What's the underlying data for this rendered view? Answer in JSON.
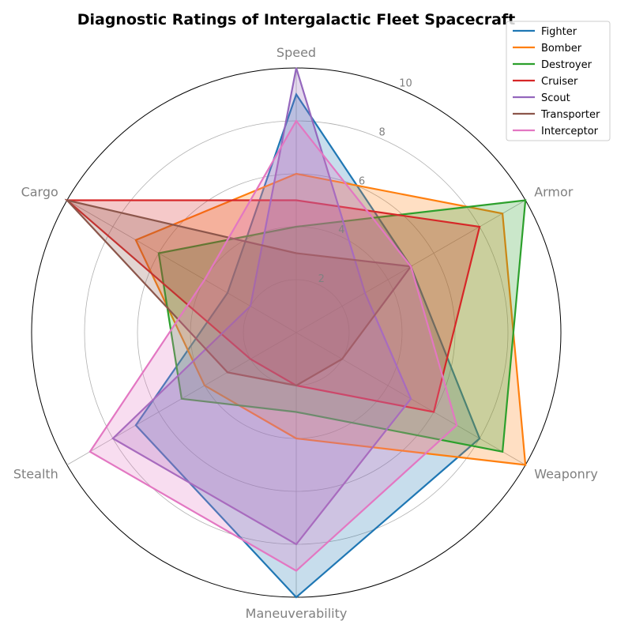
{
  "chart_data": {
    "type": "radar",
    "title": "Diagnostic Ratings of Intergalactic Fleet Spacecraft",
    "axes": [
      "Speed",
      "Armor",
      "Weaponry",
      "Maneuverability",
      "Stealth",
      "Cargo"
    ],
    "rlim": [
      0,
      10
    ],
    "rticks": [
      2,
      4,
      6,
      8,
      10
    ],
    "grid": true,
    "legend_position": "top-right",
    "series": [
      {
        "name": "Fighter",
        "color": "#1f77b4",
        "values": [
          9,
          5,
          8,
          10,
          7,
          3
        ]
      },
      {
        "name": "Bomber",
        "color": "#ff7f0e",
        "values": [
          6,
          9,
          10,
          4,
          4,
          7
        ]
      },
      {
        "name": "Destroyer",
        "color": "#2ca02c",
        "values": [
          4,
          10,
          9,
          3,
          5,
          6
        ]
      },
      {
        "name": "Cruiser",
        "color": "#d62728",
        "values": [
          5,
          8,
          6,
          2,
          2,
          10
        ]
      },
      {
        "name": "Scout",
        "color": "#9467bd",
        "values": [
          10,
          3,
          5,
          8,
          8,
          2
        ]
      },
      {
        "name": "Transporter",
        "color": "#8c564b",
        "values": [
          3,
          5,
          2,
          2,
          3,
          10
        ]
      },
      {
        "name": "Interceptor",
        "color": "#e377c2",
        "values": [
          8,
          5,
          7,
          9,
          9,
          4
        ]
      }
    ]
  }
}
